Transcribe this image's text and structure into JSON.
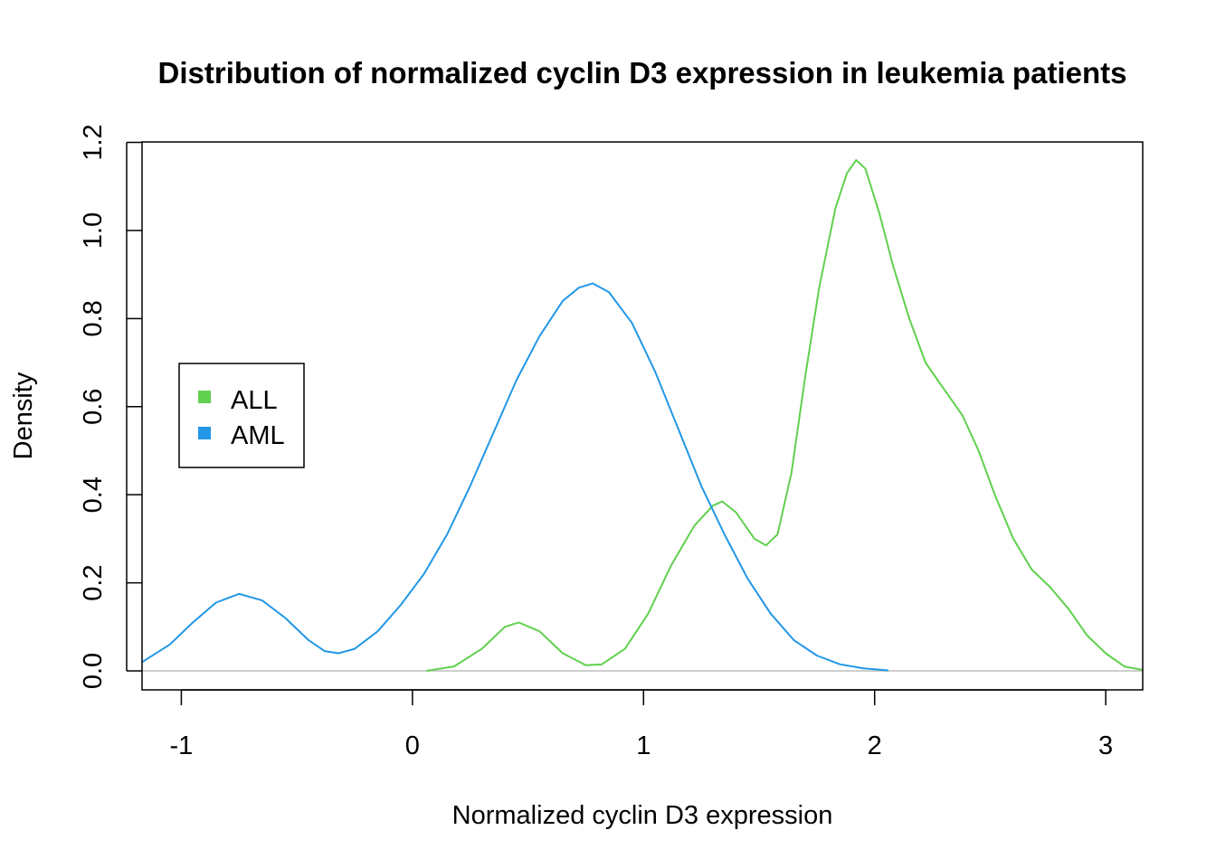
{
  "chart_data": {
    "type": "line",
    "title": "Distribution of normalized cyclin D3 expression in leukemia patients",
    "xlabel": "Normalized cyclin D3 expression",
    "ylabel": "Density",
    "xlim": [
      -1.17,
      3.16
    ],
    "ylim": [
      0,
      1.2
    ],
    "x_ticks": [
      -1,
      0,
      1,
      2,
      3
    ],
    "x_tick_labels": [
      "-1",
      "0",
      "1",
      "2",
      "3"
    ],
    "y_ticks": [
      0,
      0.2,
      0.4,
      0.6,
      0.8,
      1.0,
      1.2
    ],
    "y_tick_labels": [
      "0.0",
      "0.2",
      "0.4",
      "0.6",
      "0.8",
      "1.0",
      "1.2"
    ],
    "baseline": 0,
    "grid": false,
    "legend_position": "left",
    "series": [
      {
        "name": "ALL",
        "color": "#61D04F",
        "points": [
          [
            0.06,
            0.0
          ],
          [
            0.18,
            0.01
          ],
          [
            0.3,
            0.05
          ],
          [
            0.4,
            0.1
          ],
          [
            0.46,
            0.11
          ],
          [
            0.55,
            0.09
          ],
          [
            0.65,
            0.04
          ],
          [
            0.75,
            0.013
          ],
          [
            0.82,
            0.015
          ],
          [
            0.92,
            0.05
          ],
          [
            1.02,
            0.13
          ],
          [
            1.12,
            0.24
          ],
          [
            1.22,
            0.33
          ],
          [
            1.3,
            0.375
          ],
          [
            1.34,
            0.385
          ],
          [
            1.4,
            0.36
          ],
          [
            1.48,
            0.3
          ],
          [
            1.53,
            0.285
          ],
          [
            1.58,
            0.31
          ],
          [
            1.64,
            0.45
          ],
          [
            1.7,
            0.67
          ],
          [
            1.76,
            0.87
          ],
          [
            1.83,
            1.05
          ],
          [
            1.88,
            1.13
          ],
          [
            1.92,
            1.16
          ],
          [
            1.96,
            1.14
          ],
          [
            2.02,
            1.04
          ],
          [
            2.08,
            0.92
          ],
          [
            2.15,
            0.8
          ],
          [
            2.22,
            0.7
          ],
          [
            2.3,
            0.64
          ],
          [
            2.38,
            0.58
          ],
          [
            2.45,
            0.5
          ],
          [
            2.52,
            0.4
          ],
          [
            2.6,
            0.3
          ],
          [
            2.68,
            0.23
          ],
          [
            2.76,
            0.19
          ],
          [
            2.84,
            0.14
          ],
          [
            2.92,
            0.08
          ],
          [
            3.0,
            0.04
          ],
          [
            3.08,
            0.01
          ],
          [
            3.16,
            0.002
          ]
        ]
      },
      {
        "name": "AML",
        "color": "#2297E6",
        "points": [
          [
            -1.17,
            0.02
          ],
          [
            -1.05,
            0.06
          ],
          [
            -0.95,
            0.11
          ],
          [
            -0.85,
            0.155
          ],
          [
            -0.75,
            0.175
          ],
          [
            -0.65,
            0.16
          ],
          [
            -0.55,
            0.12
          ],
          [
            -0.45,
            0.07
          ],
          [
            -0.38,
            0.045
          ],
          [
            -0.32,
            0.04
          ],
          [
            -0.25,
            0.05
          ],
          [
            -0.15,
            0.09
          ],
          [
            -0.05,
            0.15
          ],
          [
            0.05,
            0.22
          ],
          [
            0.15,
            0.31
          ],
          [
            0.25,
            0.42
          ],
          [
            0.35,
            0.54
          ],
          [
            0.45,
            0.66
          ],
          [
            0.55,
            0.76
          ],
          [
            0.65,
            0.84
          ],
          [
            0.72,
            0.87
          ],
          [
            0.78,
            0.88
          ],
          [
            0.85,
            0.86
          ],
          [
            0.95,
            0.79
          ],
          [
            1.05,
            0.68
          ],
          [
            1.15,
            0.55
          ],
          [
            1.25,
            0.42
          ],
          [
            1.35,
            0.31
          ],
          [
            1.45,
            0.21
          ],
          [
            1.55,
            0.13
          ],
          [
            1.65,
            0.07
          ],
          [
            1.75,
            0.035
          ],
          [
            1.85,
            0.015
          ],
          [
            1.95,
            0.006
          ],
          [
            2.06,
            0.001
          ]
        ]
      }
    ]
  }
}
